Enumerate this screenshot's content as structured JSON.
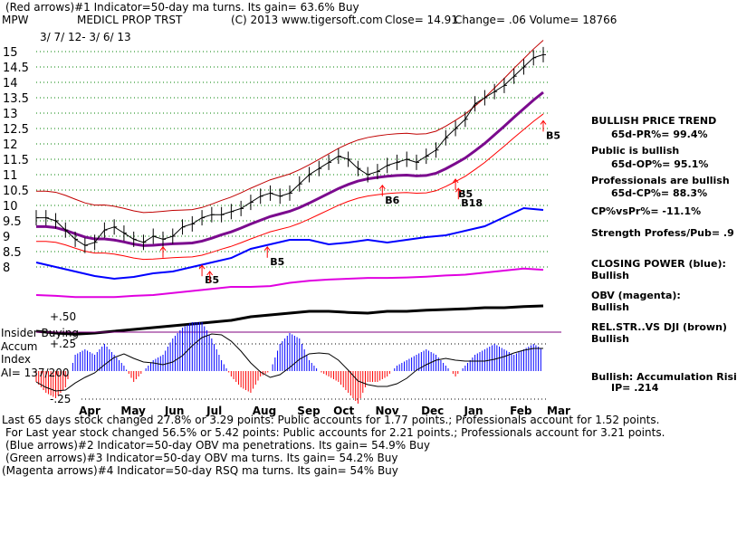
{
  "header": {
    "indicator1": "(Red arrows)#1 Indicator=50-day ma turns. Its gain= 63.6% Buy",
    "symbol": "MPW",
    "name": "MEDICL PROP TRST",
    "copyright": "(C) 2013 www.tigersoft.com",
    "close": "Close=  14.91",
    "change": "Change= .06 Volume= 18766",
    "date_range": "3/ 7/ 12- 3/ 6/ 13"
  },
  "right_panel": {
    "trend_title": "BULLISH PRICE TREND",
    "pr": "65d-PR%= 99.4%",
    "public": "Public is bullish",
    "op": "65d-OP%= 95.1%",
    "pros": "Professionals are bullish",
    "cp": "65d-CP%= 88.3%",
    "cpvspr": "CP%vsPr%= -11.1%",
    "strength": "Strength Profess/Pub= .9",
    "closing_power": "CLOSING POWER (blue):",
    "closing_power_state": "Bullish",
    "obv": "OBV (magenta):",
    "obv_state": "Bullish",
    "relstr": "REL.STR..VS DJI (brown)",
    "relstr_state": "Bullish",
    "accum": "Bullish: Accumulation Risi",
    "ip": "IP=  .214"
  },
  "left_labels": {
    "insider": "Insider Buying",
    "accum": "Accum",
    "index": "Index",
    "ai": "AI= 137/200",
    "plus50": "+.50",
    "plus25": "+.25",
    "minus25": "-.25"
  },
  "footer": {
    "line1": "Last 65 days stock changed  27.8% or  3.29 points:  Public accounts for  1.77 points.;  Professionals account for  1.52 points.",
    "line2": "For Last year stock changed  56.5% or  5.42 points:  Public accounts for  2.21 points.;  Professionals account for  3.21 points.",
    "line3": "(Blue arrows)#2 Indicator=50-day OBV ma penetrations. Its gain= 54.9% Buy",
    "line4": "(Green arrows)#3 Indicator=50-day OBV ma turns. Its gain= 54.2% Buy",
    "line5": "(Magenta arrows)#4 Indicator=50-day RSQ ma turns. Its gain= 54% Buy"
  },
  "chart_data": {
    "type": "line",
    "title": "MPW MEDICL PROP TRST",
    "y_ticks": [
      "15",
      "14.5",
      "14",
      "13.5",
      "13",
      "12.5",
      "12",
      "11.5",
      "11",
      "10.5",
      "10",
      "9.5",
      "9",
      "8.5",
      "8"
    ],
    "ylim": [
      8,
      15
    ],
    "x_ticks": [
      "Apr",
      "May",
      "Jun",
      "Jul",
      "Aug",
      "Sep",
      "Oct",
      "Nov",
      "Dec",
      "Jan",
      "Feb",
      "Mar"
    ],
    "x_tick_weeks": [
      5.3,
      9.6,
      14.1,
      18.4,
      23.1,
      27.7,
      31.4,
      35.7,
      40.4,
      44.8,
      49.5,
      53.3
    ],
    "price_weekly": [
      9.6,
      9.6,
      9.5,
      9.2,
      8.9,
      8.7,
      8.8,
      9.2,
      9.3,
      9.1,
      8.9,
      8.8,
      9.0,
      8.9,
      9.0,
      9.3,
      9.4,
      9.6,
      9.7,
      9.7,
      9.8,
      9.9,
      10.1,
      10.3,
      10.4,
      10.3,
      10.4,
      10.7,
      11.0,
      11.2,
      11.4,
      11.6,
      11.5,
      11.2,
      11.0,
      11.1,
      11.3,
      11.4,
      11.5,
      11.4,
      11.6,
      11.8,
      12.2,
      12.5,
      12.8,
      13.3,
      13.5,
      13.7,
      13.9,
      14.2,
      14.5,
      14.8,
      14.9
    ],
    "closing_power": [
      30,
      25,
      20,
      15,
      12,
      14,
      18,
      20,
      25,
      30,
      35,
      45,
      50,
      55,
      55,
      50,
      52,
      55,
      52,
      55,
      58,
      60,
      65,
      70,
      80,
      90,
      88
    ],
    "obv": [
      20,
      18,
      15,
      15,
      15,
      18,
      20,
      25,
      30,
      35,
      40,
      40,
      42,
      50,
      55,
      58,
      60,
      62,
      62,
      63,
      65,
      68,
      70,
      75,
      80,
      85,
      82
    ],
    "rel_strength": [
      30,
      25,
      22,
      25,
      30,
      35,
      40,
      45,
      50,
      55,
      60,
      70,
      75,
      80,
      85,
      85,
      82,
      80,
      85,
      85,
      88,
      90,
      92,
      95,
      95,
      98,
      100
    ],
    "accum_index": [
      -0.1,
      -0.2,
      -0.25,
      -0.15,
      0.15,
      0.2,
      0.15,
      0.25,
      0.15,
      0.05,
      -0.1,
      0.0,
      0.1,
      0.15,
      0.3,
      0.4,
      0.45,
      0.45,
      0.3,
      0.1,
      -0.05,
      -0.15,
      -0.2,
      -0.05,
      0.0,
      0.25,
      0.35,
      0.3,
      0.1,
      0.0,
      -0.05,
      -0.1,
      -0.2,
      -0.3,
      -0.1,
      -0.1,
      -0.05,
      0.05,
      0.1,
      0.15,
      0.2,
      0.15,
      0.05,
      -0.05,
      0.05,
      0.15,
      0.2,
      0.25,
      0.2,
      0.15,
      0.2,
      0.25,
      0.2
    ],
    "accum_ticks": [
      "+.25",
      "-.25"
    ],
    "signals": [
      {
        "week": 13,
        "price": 8.3,
        "label": ""
      },
      {
        "week": 17,
        "price": 7.7,
        "label": "B5"
      },
      {
        "week": 17.8,
        "price": 7.5,
        "label": ""
      },
      {
        "week": 23.7,
        "price": 8.3,
        "label": "B5"
      },
      {
        "week": 35.5,
        "price": 10.3,
        "label": "B6"
      },
      {
        "week": 43,
        "price": 10.5,
        "label": "B5"
      },
      {
        "week": 43.3,
        "price": 10.2,
        "label": "B18"
      },
      {
        "week": 52,
        "price": 12.4,
        "label": "B5"
      }
    ]
  }
}
